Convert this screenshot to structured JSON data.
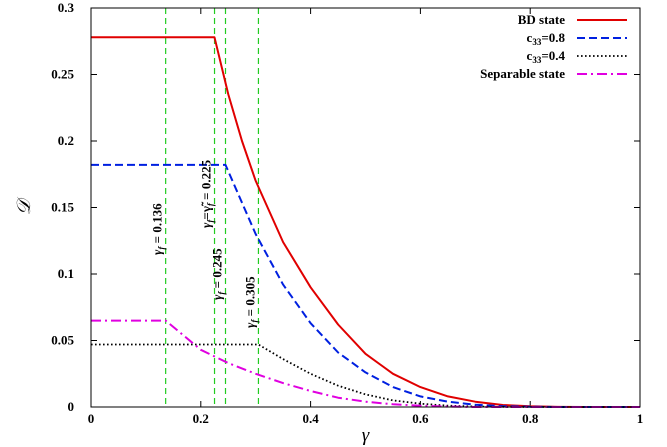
{
  "chart_data": {
    "type": "line",
    "xlabel": "γ",
    "ylabel": "𝒟",
    "xlim": [
      0,
      1
    ],
    "ylim": [
      0,
      0.3
    ],
    "x_ticks": [
      "0",
      "0.2",
      "0.4",
      "0.6",
      "0.8",
      "1"
    ],
    "y_ticks": [
      "0",
      "0.05",
      "0.1",
      "0.15",
      "0.2",
      "0.25",
      "0.3"
    ],
    "grid": false,
    "legend_position": "top-right",
    "series": [
      {
        "name": "BD state",
        "color": "#e00000",
        "style": "solid",
        "x": [
          0,
          0.225,
          0.25,
          0.275,
          0.3,
          0.35,
          0.4,
          0.45,
          0.5,
          0.55,
          0.6,
          0.65,
          0.7,
          0.75,
          0.8,
          0.85,
          0.9,
          1.0
        ],
        "y": [
          0.278,
          0.278,
          0.235,
          0.2,
          0.17,
          0.124,
          0.09,
          0.062,
          0.04,
          0.025,
          0.015,
          0.008,
          0.004,
          0.0015,
          0.0005,
          0.0001,
          0.0,
          0.0
        ]
      },
      {
        "name": "c33=0.8",
        "color": "#0020e0",
        "style": "dashed",
        "x": [
          0,
          0.245,
          0.3,
          0.35,
          0.4,
          0.45,
          0.5,
          0.55,
          0.6,
          0.65,
          0.7,
          0.75,
          0.8,
          0.85,
          1.0
        ],
        "y": [
          0.182,
          0.182,
          0.13,
          0.092,
          0.063,
          0.041,
          0.026,
          0.015,
          0.008,
          0.004,
          0.0017,
          0.0006,
          0.0002,
          0.0,
          0.0
        ]
      },
      {
        "name": "c33=0.4",
        "color": "#000000",
        "style": "dotted",
        "x": [
          0,
          0.305,
          0.35,
          0.4,
          0.45,
          0.5,
          0.55,
          0.6,
          0.65,
          0.7,
          0.75,
          0.8,
          1.0
        ],
        "y": [
          0.047,
          0.047,
          0.036,
          0.025,
          0.016,
          0.0095,
          0.005,
          0.0025,
          0.001,
          0.0004,
          0.0001,
          0.0,
          0.0
        ]
      },
      {
        "name": "Separable state",
        "color": "#e000e0",
        "style": "dashdot",
        "x": [
          0,
          0.136,
          0.2,
          0.25,
          0.3,
          0.35,
          0.4,
          0.45,
          0.5,
          0.55,
          0.6,
          0.65,
          0.7,
          1.0
        ],
        "y": [
          0.065,
          0.065,
          0.043,
          0.033,
          0.025,
          0.018,
          0.012,
          0.007,
          0.004,
          0.002,
          0.001,
          0.0003,
          0.0,
          0.0
        ]
      }
    ],
    "vlines": {
      "color": "#22cc22",
      "x": [
        0.136,
        0.225,
        0.245,
        0.305
      ]
    },
    "annotations": [
      {
        "x": 0.136,
        "greek": "γ",
        "sub": "f",
        "rest": " = 0.136"
      },
      {
        "x": 0.225,
        "greek": "γ",
        "sub": "f",
        "rest": "=γ̃",
        "sub2": "f",
        "rest2": " = 0.225"
      },
      {
        "x": 0.245,
        "greek": "γ",
        "sub": "f",
        "rest": " = 0.245"
      },
      {
        "x": 0.305,
        "greek": "γ",
        "sub": "f",
        "rest": " = 0.305"
      }
    ]
  }
}
